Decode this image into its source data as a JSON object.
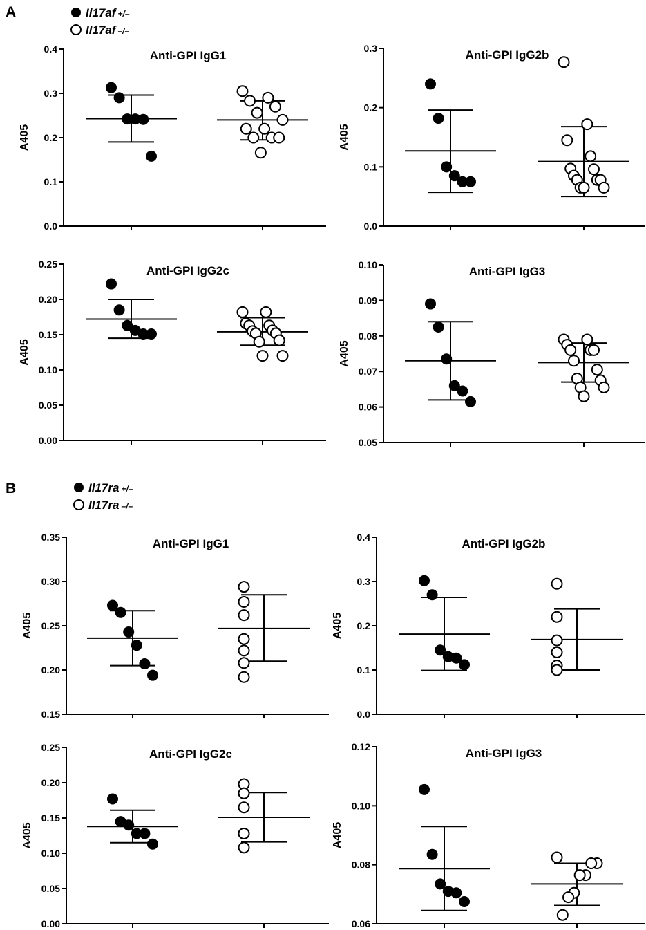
{
  "panels": [
    {
      "letter": "A",
      "legend": [
        {
          "label": "Il17af",
          "genotype": "+/–",
          "marker": "filled"
        },
        {
          "label": "Il17af",
          "genotype": "–/–",
          "marker": "open"
        }
      ]
    },
    {
      "letter": "B",
      "legend": [
        {
          "label": "Il17ra",
          "genotype": "+/–",
          "marker": "filled"
        },
        {
          "label": "Il17ra",
          "genotype": "–/–",
          "marker": "open"
        }
      ]
    }
  ],
  "chart_data": [
    {
      "type": "scatter",
      "panel": "A",
      "title": "Anti-GPI IgG1",
      "ylabel": "A405",
      "ylim": [
        0,
        0.4
      ],
      "yticks": [
        "0.0",
        "0.1",
        "0.2",
        "0.3",
        "0.4"
      ],
      "series": [
        {
          "marker": "filled",
          "values": [
            0.313,
            0.29,
            0.242,
            0.242,
            0.241,
            0.158
          ],
          "mean": 0.243,
          "sd_low": 0.19,
          "sd_high": 0.296
        },
        {
          "marker": "open",
          "values": [
            0.305,
            0.29,
            0.283,
            0.27,
            0.256,
            0.24,
            0.22,
            0.22,
            0.2,
            0.2,
            0.2,
            0.166
          ],
          "mean": 0.24,
          "sd_low": 0.195,
          "sd_high": 0.283
        }
      ]
    },
    {
      "type": "scatter",
      "panel": "A",
      "title": "Anti-GPI IgG2b",
      "ylabel": "A405",
      "ylim": [
        0,
        0.3
      ],
      "yticks": [
        "0.0",
        "0.1",
        "0.2",
        "0.3"
      ],
      "series": [
        {
          "marker": "filled",
          "values": [
            0.24,
            0.182,
            0.1,
            0.085,
            0.075,
            0.075
          ],
          "mean": 0.127,
          "sd_low": 0.057,
          "sd_high": 0.196
        },
        {
          "marker": "open",
          "values": [
            0.277,
            0.172,
            0.145,
            0.118,
            0.097,
            0.096,
            0.085,
            0.078,
            0.078,
            0.078,
            0.065,
            0.065,
            0.065
          ],
          "mean": 0.109,
          "sd_low": 0.05,
          "sd_high": 0.168
        }
      ]
    },
    {
      "type": "scatter",
      "panel": "A",
      "title": "Anti-GPI IgG2c",
      "ylabel": "A405",
      "ylim": [
        0,
        0.25
      ],
      "yticks": [
        "0.00",
        "0.05",
        "0.10",
        "0.15",
        "0.20",
        "0.25"
      ],
      "series": [
        {
          "marker": "filled",
          "values": [
            0.222,
            0.185,
            0.163,
            0.156,
            0.151,
            0.151
          ],
          "mean": 0.172,
          "sd_low": 0.145,
          "sd_high": 0.2
        },
        {
          "marker": "open",
          "values": [
            0.182,
            0.182,
            0.166,
            0.163,
            0.163,
            0.156,
            0.155,
            0.152,
            0.152,
            0.142,
            0.14,
            0.12,
            0.12
          ],
          "mean": 0.154,
          "sd_low": 0.135,
          "sd_high": 0.174
        }
      ]
    },
    {
      "type": "scatter",
      "panel": "A",
      "title": "Anti-GPI IgG3",
      "ylabel": "A405",
      "ylim": [
        0.05,
        0.1
      ],
      "yticks": [
        "0.05",
        "0.06",
        "0.07",
        "0.08",
        "0.09",
        "0.10"
      ],
      "series": [
        {
          "marker": "filled",
          "values": [
            0.089,
            0.0825,
            0.0735,
            0.066,
            0.0645,
            0.0615
          ],
          "mean": 0.073,
          "sd_low": 0.062,
          "sd_high": 0.084
        },
        {
          "marker": "open",
          "values": [
            0.079,
            0.079,
            0.0775,
            0.076,
            0.076,
            0.076,
            0.073,
            0.0705,
            0.068,
            0.0675,
            0.0655,
            0.0655,
            0.063
          ],
          "mean": 0.0725,
          "sd_low": 0.067,
          "sd_high": 0.078
        }
      ]
    },
    {
      "type": "scatter",
      "panel": "B",
      "title": "Anti-GPI IgG1",
      "ylabel": "A405",
      "ylim": [
        0.15,
        0.35
      ],
      "yticks": [
        "0.15",
        "0.20",
        "0.25",
        "0.30",
        "0.35"
      ],
      "series": [
        {
          "marker": "filled",
          "values": [
            0.273,
            0.265,
            0.243,
            0.228,
            0.207,
            0.194
          ],
          "mean": 0.236,
          "sd_low": 0.205,
          "sd_high": 0.267
        },
        {
          "marker": "open",
          "values": [
            0.294,
            0.277,
            0.262,
            0.235,
            0.222,
            0.208,
            0.192
          ],
          "mean": 0.247,
          "sd_low": 0.21,
          "sd_high": 0.285
        }
      ]
    },
    {
      "type": "scatter",
      "panel": "B",
      "title": "Anti-GPI IgG2b",
      "ylabel": "A405",
      "ylim": [
        0,
        0.4
      ],
      "yticks": [
        "0.0",
        "0.1",
        "0.2",
        "0.3",
        "0.4"
      ],
      "series": [
        {
          "marker": "filled",
          "values": [
            0.302,
            0.27,
            0.145,
            0.13,
            0.127,
            0.112
          ],
          "mean": 0.181,
          "sd_low": 0.099,
          "sd_high": 0.264
        },
        {
          "marker": "open",
          "values": [
            0.295,
            0.22,
            0.167,
            0.14,
            0.14,
            0.11,
            0.1
          ],
          "mean": 0.169,
          "sd_low": 0.1,
          "sd_high": 0.238
        }
      ]
    },
    {
      "type": "scatter",
      "panel": "B",
      "title": "Anti-GPI IgG2c",
      "ylabel": "A405",
      "ylim": [
        0,
        0.25
      ],
      "yticks": [
        "0.00",
        "0.05",
        "0.10",
        "0.15",
        "0.20",
        "0.25"
      ],
      "series": [
        {
          "marker": "filled",
          "values": [
            0.177,
            0.145,
            0.14,
            0.128,
            0.128,
            0.113
          ],
          "mean": 0.138,
          "sd_low": 0.115,
          "sd_high": 0.161
        },
        {
          "marker": "open",
          "values": [
            0.198,
            0.185,
            0.185,
            0.165,
            0.128,
            0.128,
            0.108
          ],
          "mean": 0.151,
          "sd_low": 0.116,
          "sd_high": 0.186
        }
      ]
    },
    {
      "type": "scatter",
      "panel": "B",
      "title": "Anti-GPI IgG3",
      "ylabel": "A405",
      "ylim": [
        0.06,
        0.12
      ],
      "yticks": [
        "0.06",
        "0.08",
        "0.10",
        "0.12"
      ],
      "series": [
        {
          "marker": "filled",
          "values": [
            0.1055,
            0.0835,
            0.0735,
            0.071,
            0.0705,
            0.0675
          ],
          "mean": 0.0787,
          "sd_low": 0.0645,
          "sd_high": 0.093
        },
        {
          "marker": "open",
          "values": [
            0.0825,
            0.0805,
            0.0805,
            0.0765,
            0.0765,
            0.0705,
            0.069,
            0.063
          ],
          "mean": 0.0735,
          "sd_low": 0.0662,
          "sd_high": 0.0805
        }
      ]
    }
  ]
}
